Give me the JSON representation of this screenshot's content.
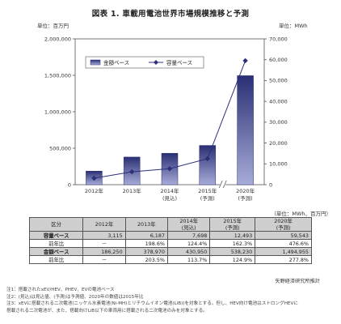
{
  "title": "図表 1. 車載用電池世界市場規模推移と予測",
  "chart_data": {
    "type": "bar+line",
    "left_axis_label": "単位：百万円",
    "right_axis_label": "単位：MWh",
    "left_ylim": [
      0,
      2000000
    ],
    "right_ylim": [
      0,
      70000
    ],
    "left_ticks": [
      "0",
      "500,000",
      "1,000,000",
      "1,500,000",
      "2,000,000"
    ],
    "right_ticks": [
      "0",
      "10,000",
      "20,000",
      "30,000",
      "40,000",
      "50,000",
      "60,000",
      "70,000"
    ],
    "categories": [
      {
        "line1": "2012年",
        "line2": ""
      },
      {
        "line1": "2013年",
        "line2": ""
      },
      {
        "line1": "2014年",
        "line2": "(見込)"
      },
      {
        "line1": "2015年",
        "line2": "(予測)"
      },
      {
        "line1": "2020年",
        "line2": "(予測)"
      }
    ],
    "series": [
      {
        "name": "金額ベース",
        "type": "bar",
        "axis": "left",
        "values": [
          186250,
          378970,
          430950,
          538230,
          1494955
        ]
      },
      {
        "name": "容量ベース",
        "type": "line",
        "axis": "right",
        "values": [
          3115,
          6187,
          7698,
          12493,
          59543
        ]
      }
    ],
    "legend_position": "top-left",
    "axis_break_between": [
      "2015年",
      "2020年"
    ]
  },
  "table": {
    "unit_note": "（単位：MWh、百万円）",
    "headers": [
      {
        "line1": "区分",
        "line2": ""
      },
      {
        "line1": "2012年",
        "line2": ""
      },
      {
        "line1": "2013年",
        "line2": ""
      },
      {
        "line1": "2014年",
        "line2": "(見込)"
      },
      {
        "line1": "2015年",
        "line2": "(予測)"
      },
      {
        "line1": "2020年",
        "line2": "(予測)"
      }
    ],
    "rows": [
      {
        "label": "容量ベース",
        "cells": [
          "3,115",
          "6,187",
          "7,698",
          "12,493",
          "59,543"
        ]
      },
      {
        "label": "前年比",
        "cells": [
          "－",
          "198.6%",
          "124.4%",
          "162.3%",
          "476.6%"
        ]
      },
      {
        "label": "金額ベース",
        "cells": [
          "186,250",
          "378,970",
          "430,950",
          "538,230",
          "1,494,955"
        ]
      },
      {
        "label": "前年比",
        "cells": [
          "－",
          "203.5%",
          "113.7%",
          "124.9%",
          "277.8%"
        ]
      }
    ]
  },
  "source": "矢野経済研究所推計",
  "notes": [
    "注1：搭載されたxEV/HEV、PHEV、EVの電池ベース",
    "注2：(見込)は見込値、(予測)は予測値、2020年の数値は2015年比",
    "注3：xEVに搭載される二次電池(ニッケル水素電池(Ni-MH)とリチウムイオン電池(LiB))を対象とする。但し、HEV向け電池はストロングHEVに",
    "搭載される二次電池が、また、搭載向けLiB以下の車両用に搭載される二次電池のみを対象とする。"
  ],
  "colors": {
    "bar_top": "#2a2f74",
    "bar_bottom": "#a8acd8",
    "line": "#2b2f7a",
    "table_header": "#cfcfcf"
  }
}
